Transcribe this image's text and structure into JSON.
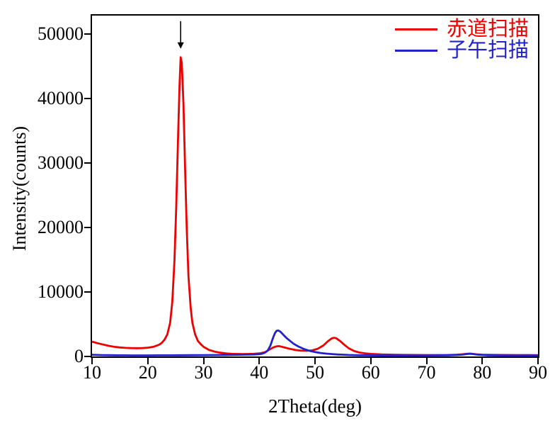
{
  "chart_data": {
    "type": "line",
    "title": "",
    "xlabel": "2Theta(deg)",
    "ylabel": "Intensity(counts)",
    "xlim": [
      10,
      90
    ],
    "ylim": [
      0,
      52860
    ],
    "x_ticks": [
      10,
      20,
      30,
      40,
      50,
      60,
      70,
      80,
      90
    ],
    "y_ticks": [
      0,
      10000,
      20000,
      30000,
      40000,
      50000
    ],
    "grid": false,
    "legend_position": "top-right-inside",
    "annotations": [
      {
        "type": "arrow-down",
        "x": 25.9,
        "y_from": 52000,
        "y_to": 48600,
        "note": "points at main equatorial peak ~46400 counts"
      }
    ],
    "series": [
      {
        "name": "赤道扫描",
        "color": "#ee0000",
        "points": [
          [
            10,
            2300
          ],
          [
            11,
            2050
          ],
          [
            12,
            1850
          ],
          [
            13,
            1650
          ],
          [
            14,
            1500
          ],
          [
            15,
            1400
          ],
          [
            16,
            1330
          ],
          [
            17,
            1300
          ],
          [
            18,
            1290
          ],
          [
            19,
            1300
          ],
          [
            20,
            1360
          ],
          [
            21,
            1500
          ],
          [
            22,
            1800
          ],
          [
            22.5,
            2100
          ],
          [
            23,
            2600
          ],
          [
            23.5,
            3400
          ],
          [
            24,
            5200
          ],
          [
            24.4,
            8500
          ],
          [
            24.8,
            15000
          ],
          [
            25.1,
            23000
          ],
          [
            25.4,
            33000
          ],
          [
            25.7,
            42000
          ],
          [
            25.9,
            46400
          ],
          [
            26.1,
            45500
          ],
          [
            26.4,
            39000
          ],
          [
            26.7,
            29000
          ],
          [
            27,
            19500
          ],
          [
            27.3,
            12500
          ],
          [
            27.7,
            7500
          ],
          [
            28,
            5200
          ],
          [
            28.5,
            3400
          ],
          [
            29,
            2400
          ],
          [
            29.5,
            1900
          ],
          [
            30,
            1500
          ],
          [
            31,
            1000
          ],
          [
            32,
            750
          ],
          [
            33,
            580
          ],
          [
            34,
            470
          ],
          [
            35,
            410
          ],
          [
            36,
            380
          ],
          [
            37,
            370
          ],
          [
            38,
            380
          ],
          [
            39,
            410
          ],
          [
            40,
            470
          ],
          [
            41,
            650
          ],
          [
            41.8,
            1050
          ],
          [
            42.5,
            1400
          ],
          [
            43,
            1550
          ],
          [
            43.5,
            1600
          ],
          [
            44,
            1520
          ],
          [
            44.8,
            1330
          ],
          [
            45.5,
            1180
          ],
          [
            46.5,
            1000
          ],
          [
            47.5,
            900
          ],
          [
            48.5,
            880
          ],
          [
            49.5,
            950
          ],
          [
            50.5,
            1200
          ],
          [
            51.5,
            1700
          ],
          [
            52.3,
            2350
          ],
          [
            53,
            2800
          ],
          [
            53.4,
            2900
          ],
          [
            53.8,
            2820
          ],
          [
            54.5,
            2400
          ],
          [
            55.2,
            1850
          ],
          [
            56,
            1300
          ],
          [
            57,
            850
          ],
          [
            58,
            600
          ],
          [
            59,
            480
          ],
          [
            60,
            400
          ],
          [
            61,
            350
          ],
          [
            62,
            310
          ],
          [
            64,
            270
          ],
          [
            66,
            240
          ],
          [
            68,
            230
          ],
          [
            70,
            220
          ],
          [
            72,
            220
          ],
          [
            74,
            235
          ],
          [
            75.5,
            280
          ],
          [
            76.5,
            340
          ],
          [
            77.3,
            420
          ],
          [
            77.8,
            440
          ],
          [
            78.3,
            400
          ],
          [
            79,
            330
          ],
          [
            80,
            280
          ],
          [
            81,
            250
          ],
          [
            82,
            240
          ],
          [
            84,
            230
          ],
          [
            86,
            225
          ],
          [
            88,
            220
          ],
          [
            90,
            210
          ]
        ]
      },
      {
        "name": "子午扫描",
        "color": "#2222cc",
        "points": [
          [
            10,
            260
          ],
          [
            11,
            230
          ],
          [
            12,
            210
          ],
          [
            13,
            195
          ],
          [
            14,
            185
          ],
          [
            15,
            180
          ],
          [
            16,
            175
          ],
          [
            17,
            170
          ],
          [
            18,
            168
          ],
          [
            19,
            168
          ],
          [
            20,
            170
          ],
          [
            22,
            175
          ],
          [
            24,
            180
          ],
          [
            26,
            190
          ],
          [
            28,
            200
          ],
          [
            30,
            210
          ],
          [
            32,
            225
          ],
          [
            34,
            240
          ],
          [
            36,
            260
          ],
          [
            38,
            285
          ],
          [
            39,
            310
          ],
          [
            40,
            360
          ],
          [
            40.5,
            430
          ],
          [
            41,
            580
          ],
          [
            41.5,
            900
          ],
          [
            42,
            1700
          ],
          [
            42.4,
            2700
          ],
          [
            42.8,
            3600
          ],
          [
            43.1,
            3980
          ],
          [
            43.4,
            4020
          ],
          [
            43.7,
            3900
          ],
          [
            44,
            3650
          ],
          [
            44.5,
            3200
          ],
          [
            45,
            2780
          ],
          [
            45.6,
            2350
          ],
          [
            46.2,
            1950
          ],
          [
            47,
            1550
          ],
          [
            48,
            1150
          ],
          [
            49,
            880
          ],
          [
            50,
            680
          ],
          [
            51,
            540
          ],
          [
            52,
            440
          ],
          [
            53,
            370
          ],
          [
            54,
            310
          ],
          [
            55,
            270
          ],
          [
            56,
            235
          ],
          [
            57,
            210
          ],
          [
            58,
            190
          ],
          [
            59,
            175
          ],
          [
            60,
            165
          ],
          [
            62,
            155
          ],
          [
            64,
            150
          ],
          [
            66,
            150
          ],
          [
            68,
            150
          ],
          [
            70,
            155
          ],
          [
            72,
            165
          ],
          [
            74,
            185
          ],
          [
            75.5,
            230
          ],
          [
            76.5,
            300
          ],
          [
            77.4,
            400
          ],
          [
            77.9,
            420
          ],
          [
            78.4,
            370
          ],
          [
            79,
            300
          ],
          [
            80,
            230
          ],
          [
            81,
            190
          ],
          [
            82,
            170
          ],
          [
            84,
            155
          ],
          [
            86,
            150
          ],
          [
            88,
            148
          ],
          [
            90,
            145
          ]
        ]
      }
    ]
  },
  "legend": {
    "items": [
      {
        "label": "赤道扫描",
        "color": "#ee0000"
      },
      {
        "label": "子午扫描",
        "color": "#2222cc"
      }
    ]
  }
}
